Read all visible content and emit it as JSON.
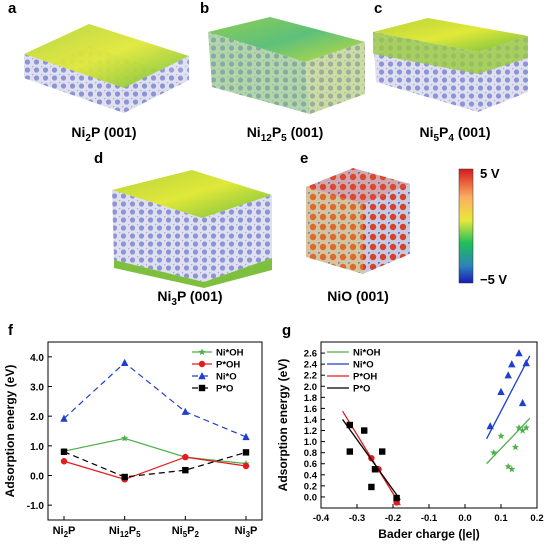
{
  "panels": [
    {
      "letter": "a",
      "caption_parts": [
        {
          "t": "Ni",
          "s": ""
        },
        {
          "t": "2",
          "s": "sub"
        },
        {
          "t": "P (001)",
          "s": ""
        }
      ]
    },
    {
      "letter": "b",
      "caption_parts": [
        {
          "t": "Ni",
          "s": ""
        },
        {
          "t": "12",
          "s": "sub"
        },
        {
          "t": "P",
          "s": ""
        },
        {
          "t": "5",
          "s": "sub"
        },
        {
          "t": " (001)",
          "s": ""
        }
      ]
    },
    {
      "letter": "c",
      "caption_parts": [
        {
          "t": "Ni",
          "s": ""
        },
        {
          "t": "5",
          "s": "sub"
        },
        {
          "t": "P",
          "s": ""
        },
        {
          "t": "4",
          "s": "sub"
        },
        {
          "t": " (001)",
          "s": ""
        }
      ]
    },
    {
      "letter": "d",
      "caption_parts": [
        {
          "t": "Ni",
          "s": ""
        },
        {
          "t": "3",
          "s": "sub"
        },
        {
          "t": "P (001)",
          "s": ""
        }
      ]
    },
    {
      "letter": "e",
      "caption_parts": [
        {
          "t": "NiO (001)",
          "s": ""
        }
      ]
    }
  ],
  "colorbar": {
    "top_label": "5 V",
    "bottom_label": "−5 V"
  },
  "chart_data": [
    {
      "panel": "f",
      "type": "line",
      "categories": [
        [
          {
            "t": "Ni",
            "s": ""
          },
          {
            "t": "2",
            "s": "sub"
          },
          {
            "t": "P",
            "s": ""
          }
        ],
        [
          {
            "t": "Ni",
            "s": ""
          },
          {
            "t": "12",
            "s": "sub"
          },
          {
            "t": "P",
            "s": ""
          },
          {
            "t": "5",
            "s": "sub"
          }
        ],
        [
          {
            "t": "Ni",
            "s": ""
          },
          {
            "t": "5",
            "s": "sub"
          },
          {
            "t": "P",
            "s": ""
          },
          {
            "t": "2",
            "s": "sub"
          }
        ],
        [
          {
            "t": "Ni",
            "s": ""
          },
          {
            "t": "3",
            "s": "sub"
          },
          {
            "t": "P",
            "s": ""
          }
        ]
      ],
      "ylabel": "Adsorption energy (eV)",
      "ylim": [
        -1.5,
        4.5
      ],
      "yticks": [
        "4.0",
        "3.0",
        "2.0",
        "1.0",
        "0.0",
        "-1.0"
      ],
      "ytick_values": [
        4,
        3,
        2,
        1,
        0,
        -1
      ],
      "legend_position": "top-right",
      "series": [
        {
          "name": "Ni*OH",
          "color": "#4daf4a",
          "marker": "star",
          "dash": "",
          "values": [
            0.82,
            1.25,
            0.62,
            0.4
          ]
        },
        {
          "name": "P*OH",
          "color": "#e41a1c",
          "marker": "circle",
          "dash": "",
          "values": [
            0.48,
            -0.13,
            0.62,
            0.32
          ]
        },
        {
          "name": "Ni*O",
          "color": "#1f3fcf",
          "marker": "triangle",
          "dash": "6,4",
          "values": [
            1.92,
            3.8,
            2.15,
            1.3
          ]
        },
        {
          "name": "P*O",
          "color": "#000000",
          "marker": "square",
          "dash": "6,4",
          "values": [
            0.8,
            -0.05,
            0.18,
            0.78
          ]
        }
      ]
    },
    {
      "panel": "g",
      "type": "scatter",
      "xlabel": "Bader charge (|e|)",
      "ylabel": "Adsorption energy (eV)",
      "xlim": [
        -0.4,
        0.2
      ],
      "ylim": [
        -0.2,
        2.8
      ],
      "xticks": [
        "-0.4",
        "-0.3",
        "-0.2",
        "-0.1",
        "0.0",
        "0.1",
        "0.2"
      ],
      "xtick_values": [
        -0.4,
        -0.3,
        -0.2,
        -0.1,
        0.0,
        0.1,
        0.2
      ],
      "yticks": [
        "0.0",
        "0.2",
        "0.4",
        "0.6",
        "0.8",
        "1.0",
        "1.2",
        "1.4",
        "1.6",
        "1.8",
        "2.0",
        "2.2",
        "2.4",
        "2.6"
      ],
      "ytick_values": [
        0,
        0.2,
        0.4,
        0.6,
        0.8,
        1.0,
        1.2,
        1.4,
        1.6,
        1.8,
        2.0,
        2.2,
        2.4,
        2.6
      ],
      "legend_position": "top-left",
      "series": [
        {
          "name": "Ni*OH",
          "color": "#4daf4a",
          "marker": "star",
          "points": [
            [
              0.08,
              0.8
            ],
            [
              0.1,
              1.1
            ],
            [
              0.12,
              0.55
            ],
            [
              0.13,
              0.5
            ],
            [
              0.14,
              0.9
            ],
            [
              0.15,
              1.25
            ],
            [
              0.16,
              1.2
            ],
            [
              0.17,
              1.25
            ]
          ],
          "fit": [
            [
              0.06,
              0.6
            ],
            [
              0.18,
              1.42
            ]
          ]
        },
        {
          "name": "Ni*O",
          "color": "#1f3fcf",
          "marker": "triangle",
          "points": [
            [
              0.07,
              1.28
            ],
            [
              0.1,
              1.9
            ],
            [
              0.12,
              2.2
            ],
            [
              0.13,
              2.4
            ],
            [
              0.15,
              2.6
            ],
            [
              0.16,
              1.7
            ],
            [
              0.17,
              2.42
            ]
          ],
          "fit": [
            [
              0.06,
              1.05
            ],
            [
              0.18,
              2.55
            ]
          ]
        },
        {
          "name": "P*OH",
          "color": "#e41a1c",
          "marker": "circle",
          "points": [
            [
              -0.28,
              1.2
            ],
            [
              -0.26,
              0.7
            ],
            [
              -0.25,
              0.5
            ],
            [
              -0.24,
              0.5
            ],
            [
              -0.19,
              -0.1
            ]
          ],
          "fit": [
            [
              -0.34,
              1.55
            ],
            [
              -0.18,
              -0.15
            ]
          ]
        },
        {
          "name": "P*O",
          "color": "#000000",
          "marker": "square",
          "points": [
            [
              -0.32,
              1.3
            ],
            [
              -0.32,
              0.82
            ],
            [
              -0.28,
              1.2
            ],
            [
              -0.26,
              0.18
            ],
            [
              -0.23,
              0.82
            ],
            [
              -0.25,
              0.5
            ],
            [
              -0.19,
              -0.02
            ]
          ],
          "fit": [
            [
              -0.34,
              1.4
            ],
            [
              -0.18,
              -0.05
            ]
          ]
        }
      ]
    }
  ]
}
